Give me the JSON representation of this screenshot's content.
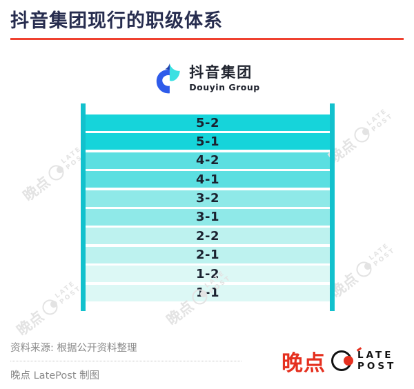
{
  "header": {
    "title": "抖音集团现行的职级体系"
  },
  "colors": {
    "title_navy": "#272D4F",
    "divider_red": "#EF4130",
    "rail_teal": "#12C1CD",
    "footer_gray": "#8A8A8A",
    "brand_red": "#E5301F"
  },
  "douyin_logo": {
    "cn": "抖音集团",
    "en": "Douyin Group",
    "mark_blue": "#2E5BEA",
    "mark_cyan": "#3BE0E2"
  },
  "chart_data": {
    "type": "table",
    "title": "抖音集团现行的职级体系",
    "categories": [
      "5-2",
      "5-1",
      "4-2",
      "4-1",
      "3-2",
      "3-1",
      "2-2",
      "2-1",
      "1-2",
      "1-1"
    ],
    "levels": [
      {
        "label": "5-2",
        "color": "#16D4DA"
      },
      {
        "label": "5-1",
        "color": "#16D4DA"
      },
      {
        "label": "4-2",
        "color": "#5BDFE1"
      },
      {
        "label": "4-1",
        "color": "#5BDFE1"
      },
      {
        "label": "3-2",
        "color": "#8FE9E8"
      },
      {
        "label": "3-1",
        "color": "#8FE9E8"
      },
      {
        "label": "2-2",
        "color": "#BDF2EF"
      },
      {
        "label": "2-1",
        "color": "#BDF2EF"
      },
      {
        "label": "1-2",
        "color": "#DCF8F5"
      },
      {
        "label": "1-1",
        "color": "#DCF8F5"
      }
    ],
    "rail_color": "#12C1CD",
    "legend_position": "none",
    "grid": false
  },
  "footer": {
    "source": "资料来源: 根据公开资料整理",
    "credit": "晚点 LatePost 制图"
  },
  "brand": {
    "cn": "晚点",
    "en_line1": "LATE",
    "en_line2": "POST"
  },
  "watermark": {
    "cn": "晚点",
    "en_line1": "LATE",
    "en_line2": "POST"
  }
}
